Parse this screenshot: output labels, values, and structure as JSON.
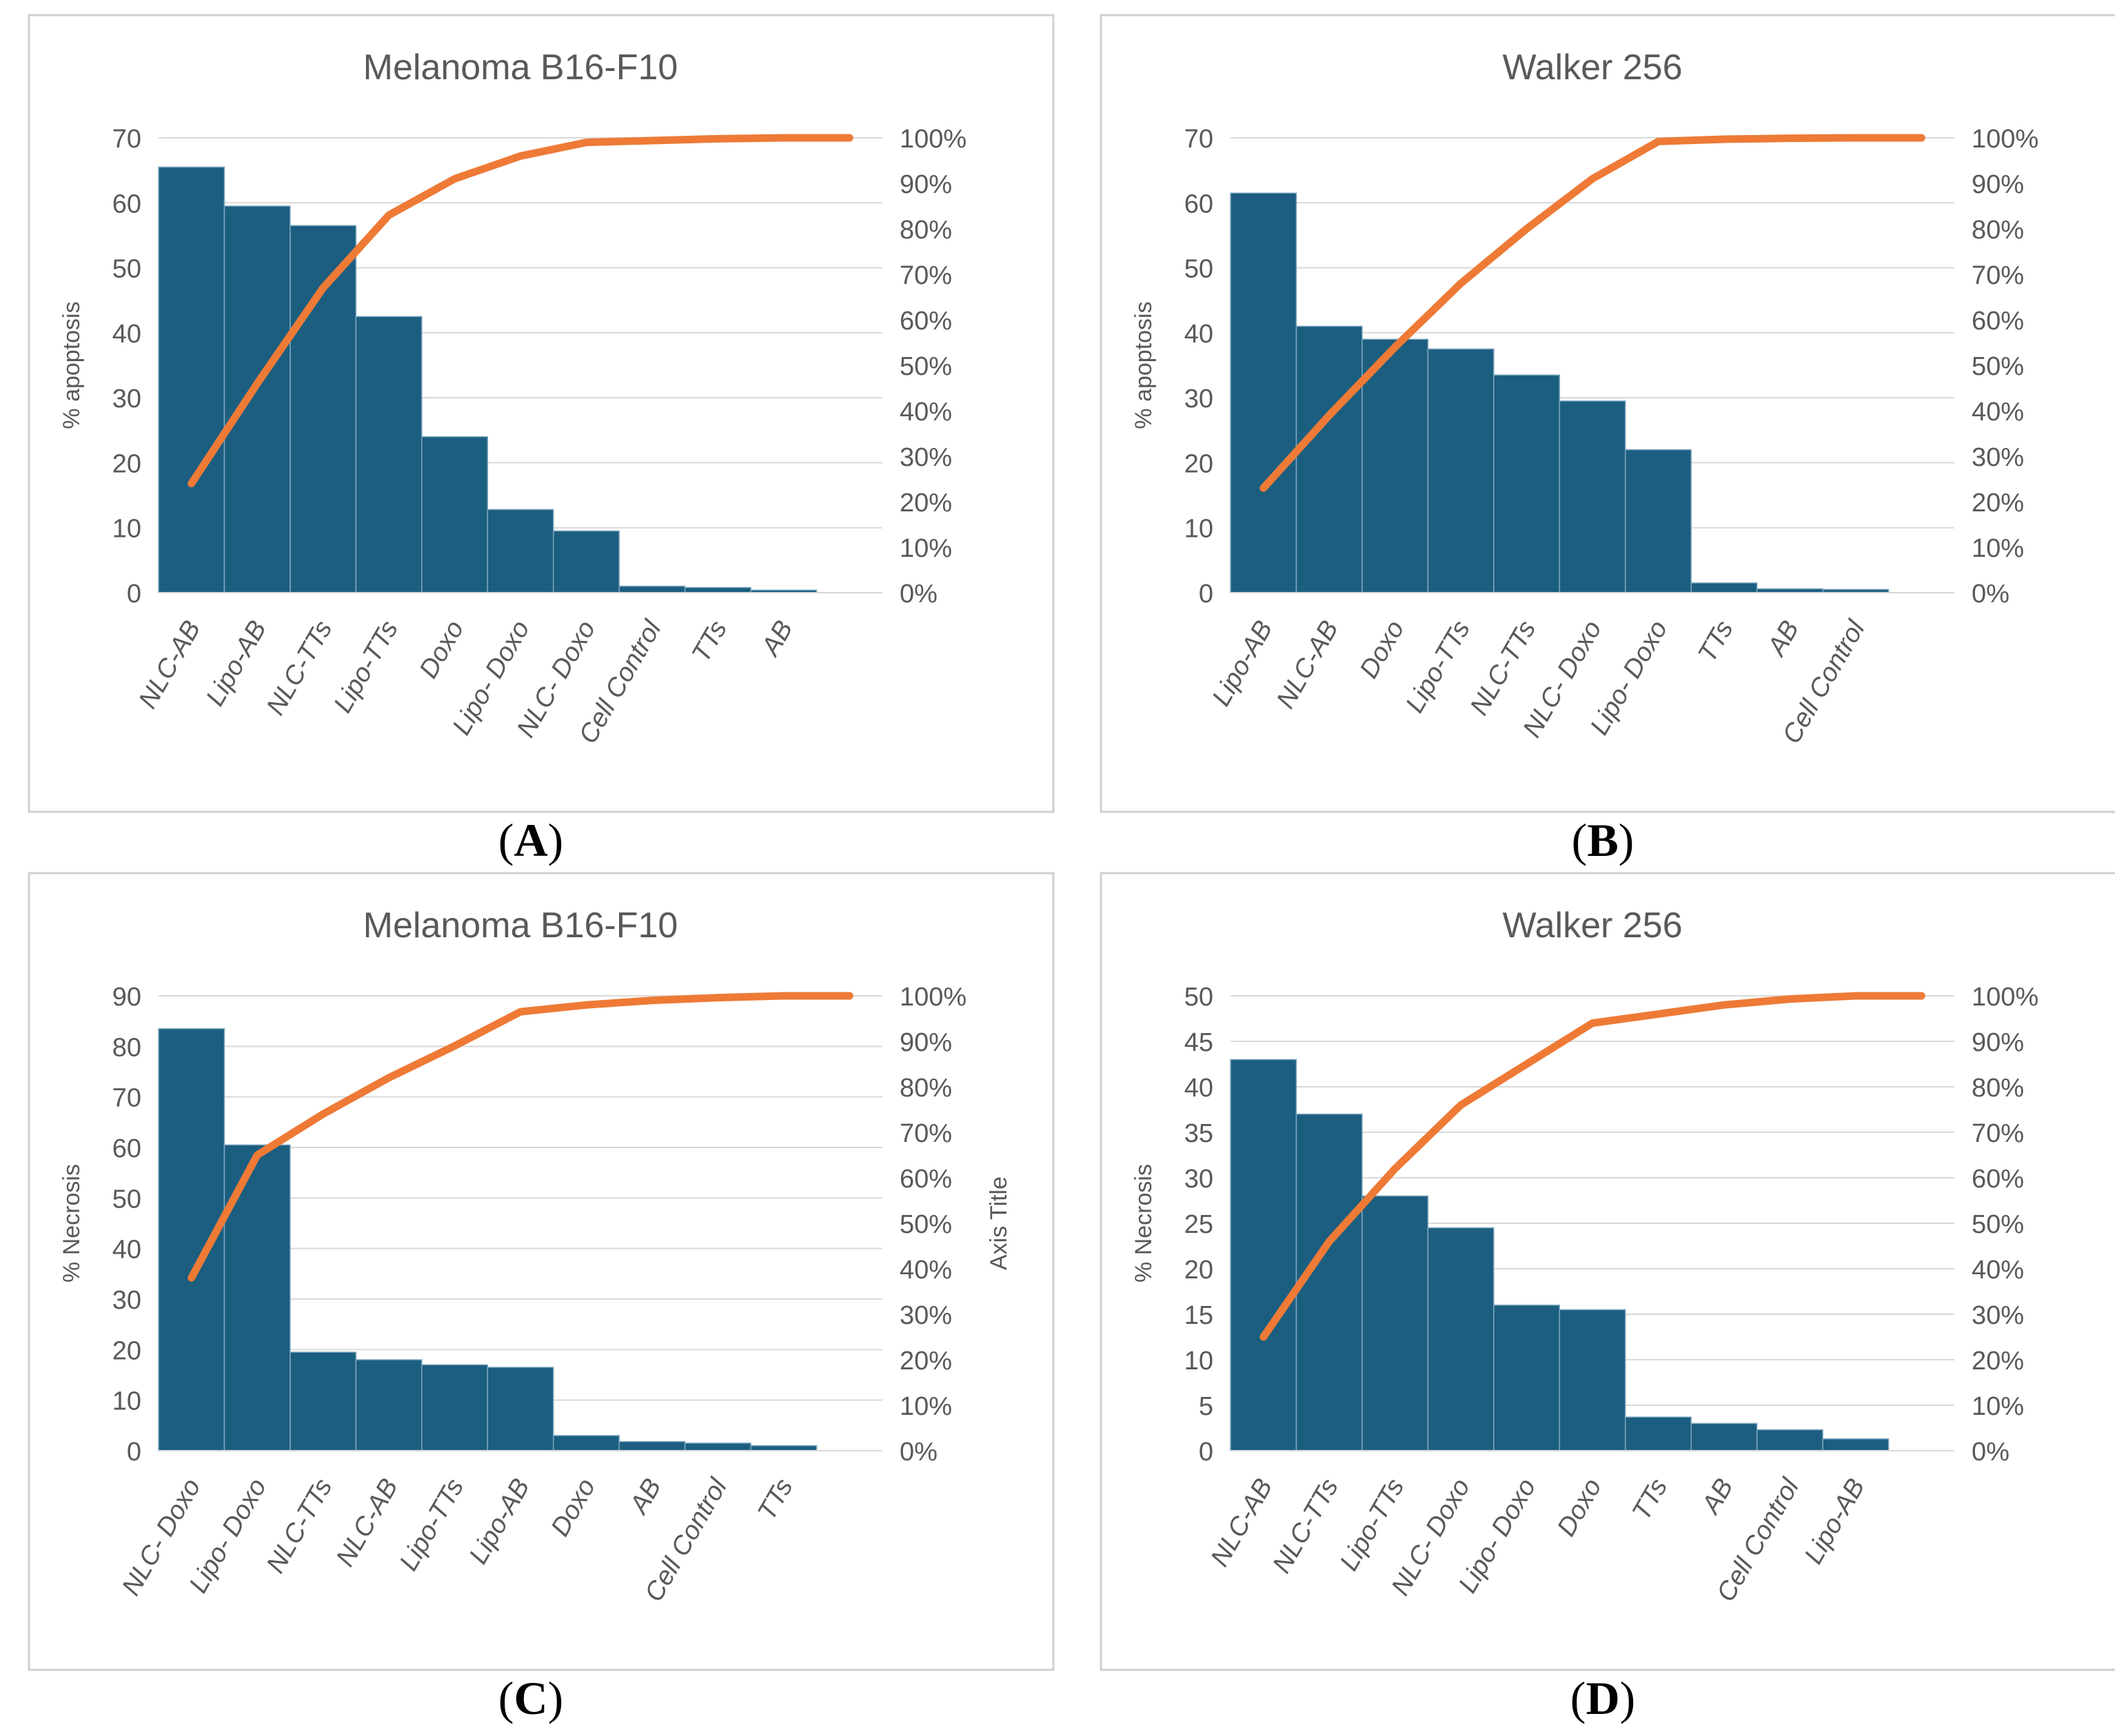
{
  "colors": {
    "bar": "#1b5e80",
    "bar_edge": "#7fa8c0",
    "line": "#ee7a36",
    "grid": "#d9d9d9",
    "frame": "#cfcfcf",
    "text": "#595959"
  },
  "panel_labels": [
    "A",
    "B",
    "C",
    "D"
  ],
  "chart_data": [
    {
      "type": "bar",
      "overlay": "cumulative-line (pareto)",
      "title": "Melanoma B16-F10",
      "ylabel": "% apoptosis",
      "y2label": "",
      "ylim": [
        0,
        70
      ],
      "y_ticks": [
        "0",
        "10",
        "20",
        "30",
        "40",
        "50",
        "60",
        "70"
      ],
      "y2_ticks": [
        "0%",
        "10%",
        "20%",
        "30%",
        "40%",
        "50%",
        "60%",
        "70%",
        "80%",
        "90%",
        "100%"
      ],
      "categories": [
        "NLC-AB",
        "Lipo-AB",
        "NLC-TTs",
        "Lipo-TTs",
        "Doxo",
        "Lipo- Doxo",
        "NLC- Doxo",
        "Cell Control",
        "TTs",
        "AB"
      ],
      "values": [
        65.5,
        59.5,
        56.5,
        42.5,
        24,
        12.8,
        9.5,
        1,
        0.8,
        0.4
      ],
      "cumulative_percent": [
        24,
        46,
        67,
        83,
        91,
        96,
        99,
        99.4,
        99.8,
        100
      ]
    },
    {
      "type": "bar",
      "overlay": "cumulative-line (pareto)",
      "title": "Walker 256",
      "ylabel": "% apoptosis",
      "y2label": "",
      "ylim": [
        0,
        70
      ],
      "y_ticks": [
        "0",
        "10",
        "20",
        "30",
        "40",
        "50",
        "60",
        "70"
      ],
      "y2_ticks": [
        "0%",
        "10%",
        "20%",
        "30%",
        "40%",
        "50%",
        "60%",
        "70%",
        "80%",
        "90%",
        "100%"
      ],
      "categories": [
        "Lipo-AB",
        "NLC-AB",
        "Doxo",
        "Lipo-TTs",
        "NLC-TTs",
        "NLC- Doxo",
        "Lipo- Doxo",
        "TTs",
        "AB",
        "Cell Control"
      ],
      "values": [
        61.5,
        41,
        39,
        37.5,
        33.5,
        29.5,
        22,
        1.5,
        0.6,
        0.5
      ],
      "cumulative_percent": [
        23,
        39,
        54,
        68,
        80,
        91,
        99.2,
        99.7,
        99.9,
        100
      ]
    },
    {
      "type": "bar",
      "overlay": "cumulative-line (pareto)",
      "title": "Melanoma B16-F10",
      "ylabel": "% Necrosis",
      "y2label": "Axis Title",
      "ylim": [
        0,
        90
      ],
      "y_ticks": [
        "0",
        "10",
        "20",
        "30",
        "40",
        "50",
        "60",
        "70",
        "80",
        "90"
      ],
      "y2_ticks": [
        "0%",
        "10%",
        "20%",
        "30%",
        "40%",
        "50%",
        "60%",
        "70%",
        "80%",
        "90%",
        "100%"
      ],
      "categories": [
        "NLC- Doxo",
        "Lipo- Doxo",
        "NLC-TTs",
        "NLC-AB",
        "Lipo-TTs",
        "Lipo-AB",
        "Doxo",
        "AB",
        "Cell Control",
        "TTs"
      ],
      "values": [
        83.5,
        60.5,
        19.5,
        18,
        17,
        16.5,
        3,
        1.8,
        1.5,
        1
      ],
      "cumulative_percent": [
        38,
        65,
        74,
        82,
        89,
        96.5,
        98,
        99,
        99.6,
        100
      ]
    },
    {
      "type": "bar",
      "overlay": "cumulative-line (pareto)",
      "title": "Walker 256",
      "ylabel": "% Necrosis",
      "y2label": "",
      "ylim": [
        0,
        50
      ],
      "y_ticks": [
        "0",
        "5",
        "10",
        "15",
        "20",
        "25",
        "30",
        "35",
        "40",
        "45",
        "50"
      ],
      "y2_ticks": [
        "0%",
        "10%",
        "20%",
        "30%",
        "40%",
        "50%",
        "60%",
        "70%",
        "80%",
        "90%",
        "100%"
      ],
      "categories": [
        "NLC-AB",
        "NLC-TTs",
        "Lipo-TTs",
        "NLC- Doxo",
        "Lipo- Doxo",
        "Doxo",
        "TTs",
        "AB",
        "Cell Control",
        "Lipo-AB"
      ],
      "values": [
        43,
        37,
        28,
        24.5,
        16,
        15.5,
        3.7,
        3,
        2.3,
        1.3
      ],
      "cumulative_percent": [
        25,
        46,
        62,
        76,
        85,
        94,
        96,
        98,
        99.3,
        100
      ]
    }
  ]
}
